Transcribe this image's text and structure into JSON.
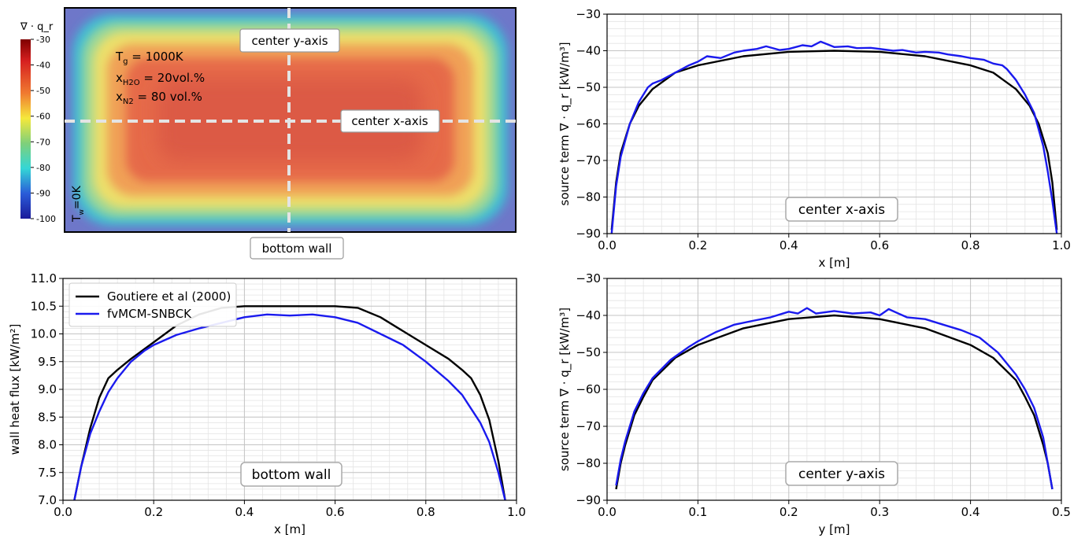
{
  "heatmap": {
    "colorbar_label": "∇ · q_r",
    "colorbar_ticks": [
      "-30",
      "-40",
      "-50",
      "-60",
      "-70",
      "-80",
      "-90",
      "-100"
    ],
    "colorbar_range": [
      -100,
      -30
    ],
    "param_tg": "T",
    "param_tg_sub": "g",
    "param_tg_val": " = 1000K",
    "param_h2o": "x",
    "param_h2o_sub": "H2O",
    "param_h2o_val": " = 20vol.%",
    "param_n2": "x",
    "param_n2_sub": "N2",
    "param_n2_val": "  = 80 vol.%",
    "wall_label": "T",
    "wall_label_sub": "w",
    "wall_label_val": "=0K",
    "label_y_axis": "center y-axis",
    "label_x_axis": "center x-axis",
    "label_bottom_wall": "bottom wall"
  },
  "chart_data": [
    {
      "id": "center-x",
      "type": "line",
      "xlabel": "x [m]",
      "ylabel": "source term ∇ · q_r [kW/m³]",
      "xlim": [
        0.0,
        1.0
      ],
      "ylim": [
        -90,
        -30
      ],
      "xticks": [
        "0.0",
        "0.2",
        "0.4",
        "0.6",
        "0.8",
        "1.0"
      ],
      "yticks": [
        "−90",
        "−80",
        "−70",
        "−60",
        "−50",
        "−40",
        "−30"
      ],
      "annotation": "center x-axis",
      "grid": true,
      "series": [
        {
          "color": "#000000",
          "x": [
            0.01,
            0.02,
            0.03,
            0.05,
            0.07,
            0.1,
            0.15,
            0.2,
            0.3,
            0.4,
            0.5,
            0.6,
            0.7,
            0.8,
            0.85,
            0.9,
            0.93,
            0.95,
            0.97,
            0.98,
            0.99
          ],
          "y": [
            -89,
            -76,
            -68,
            -60,
            -55,
            -50.5,
            -46,
            -44,
            -41.5,
            -40.3,
            -40,
            -40.3,
            -41.5,
            -44,
            -46,
            -50.5,
            -55,
            -60,
            -68,
            -76,
            -89
          ]
        },
        {
          "color": "#1a1aee",
          "x": [
            0.01,
            0.02,
            0.03,
            0.05,
            0.07,
            0.09,
            0.1,
            0.12,
            0.15,
            0.18,
            0.2,
            0.22,
            0.25,
            0.28,
            0.3,
            0.33,
            0.35,
            0.38,
            0.4,
            0.43,
            0.45,
            0.47,
            0.5,
            0.53,
            0.55,
            0.58,
            0.6,
            0.63,
            0.65,
            0.68,
            0.7,
            0.73,
            0.75,
            0.78,
            0.8,
            0.83,
            0.85,
            0.87,
            0.88,
            0.9,
            0.92,
            0.94,
            0.96,
            0.97,
            0.98,
            0.99
          ],
          "y": [
            -90,
            -77,
            -69,
            -60,
            -54,
            -50,
            -49,
            -48,
            -46,
            -44,
            -43,
            -41.5,
            -42,
            -40.5,
            -40,
            -39.5,
            -38.8,
            -39.8,
            -39.5,
            -38.5,
            -38.8,
            -37.5,
            -39,
            -38.8,
            -39.3,
            -39.2,
            -39.5,
            -40,
            -39.8,
            -40.5,
            -40.3,
            -40.5,
            -41,
            -41.5,
            -42,
            -42.5,
            -43.5,
            -44,
            -45,
            -48,
            -52,
            -57,
            -66,
            -73,
            -81,
            -90
          ]
        }
      ]
    },
    {
      "id": "bottom-wall",
      "type": "line",
      "xlabel": "x [m]",
      "ylabel": "wall heat flux [kW/m²]",
      "xlim": [
        0.0,
        1.0
      ],
      "ylim": [
        7.0,
        11.0
      ],
      "xticks": [
        "0.0",
        "0.2",
        "0.4",
        "0.6",
        "0.8",
        "1.0"
      ],
      "yticks": [
        "7.0",
        "7.5",
        "8.0",
        "8.5",
        "9.0",
        "9.5",
        "10.0",
        "10.5",
        "11.0"
      ],
      "annotation": "bottom wall",
      "grid": true,
      "legend": "upper-left",
      "series": [
        {
          "name": "Goutiere et al (2000)",
          "color": "#000000",
          "x": [
            0.025,
            0.04,
            0.06,
            0.08,
            0.1,
            0.12,
            0.15,
            0.2,
            0.25,
            0.3,
            0.35,
            0.4,
            0.45,
            0.5,
            0.55,
            0.6,
            0.65,
            0.7,
            0.75,
            0.8,
            0.85,
            0.88,
            0.9,
            0.92,
            0.94,
            0.96,
            0.975
          ],
          "y": [
            7.0,
            7.6,
            8.3,
            8.85,
            9.2,
            9.35,
            9.55,
            9.85,
            10.15,
            10.35,
            10.47,
            10.5,
            10.5,
            10.5,
            10.5,
            10.5,
            10.47,
            10.3,
            10.05,
            9.8,
            9.55,
            9.35,
            9.2,
            8.9,
            8.45,
            7.7,
            7.0
          ]
        },
        {
          "name": "fvMCM-SNBCK",
          "color": "#1a1aee",
          "x": [
            0.025,
            0.04,
            0.06,
            0.08,
            0.1,
            0.12,
            0.15,
            0.18,
            0.2,
            0.25,
            0.3,
            0.35,
            0.4,
            0.45,
            0.5,
            0.55,
            0.6,
            0.65,
            0.7,
            0.75,
            0.8,
            0.85,
            0.88,
            0.9,
            0.92,
            0.94,
            0.96,
            0.975
          ],
          "y": [
            7.0,
            7.6,
            8.2,
            8.6,
            8.95,
            9.2,
            9.5,
            9.7,
            9.8,
            9.98,
            10.1,
            10.2,
            10.3,
            10.35,
            10.33,
            10.35,
            10.3,
            10.2,
            10.0,
            9.8,
            9.5,
            9.15,
            8.9,
            8.65,
            8.4,
            8.05,
            7.5,
            7.0
          ]
        }
      ]
    },
    {
      "id": "center-y",
      "type": "line",
      "xlabel": "y [m]",
      "ylabel": "source term ∇ · q_r [kW/m³]",
      "xlim": [
        0.0,
        0.5
      ],
      "ylim": [
        -90,
        -30
      ],
      "xticks": [
        "0.0",
        "0.1",
        "0.2",
        "0.3",
        "0.4",
        "0.5"
      ],
      "yticks": [
        "−90",
        "−80",
        "−70",
        "−60",
        "−50",
        "−40",
        "−30"
      ],
      "annotation": "center y-axis",
      "grid": true,
      "series": [
        {
          "color": "#000000",
          "x": [
            0.01,
            0.015,
            0.02,
            0.03,
            0.04,
            0.05,
            0.075,
            0.1,
            0.15,
            0.2,
            0.25,
            0.3,
            0.35,
            0.4,
            0.425,
            0.45,
            0.46,
            0.47,
            0.48,
            0.485,
            0.49
          ],
          "y": [
            -87,
            -80,
            -75,
            -67,
            -62,
            -57.5,
            -51.5,
            -48,
            -43.5,
            -41,
            -40,
            -41,
            -43.5,
            -48,
            -51.5,
            -57.5,
            -62,
            -67,
            -75,
            -80,
            -87
          ]
        },
        {
          "color": "#1a1aee",
          "x": [
            0.01,
            0.015,
            0.02,
            0.03,
            0.04,
            0.05,
            0.07,
            0.09,
            0.1,
            0.12,
            0.14,
            0.16,
            0.18,
            0.2,
            0.21,
            0.22,
            0.23,
            0.25,
            0.27,
            0.29,
            0.3,
            0.31,
            0.33,
            0.35,
            0.37,
            0.39,
            0.41,
            0.43,
            0.45,
            0.46,
            0.47,
            0.48,
            0.49
          ],
          "y": [
            -86,
            -79,
            -74,
            -66,
            -61,
            -57,
            -52,
            -48.5,
            -47,
            -44.5,
            -42.5,
            -41.5,
            -40.5,
            -39,
            -39.5,
            -38,
            -39.5,
            -38.8,
            -39.5,
            -39.2,
            -40,
            -38.3,
            -40.5,
            -41,
            -42.5,
            -44,
            -46,
            -50,
            -56,
            -60,
            -65,
            -73,
            -87
          ]
        }
      ]
    }
  ]
}
